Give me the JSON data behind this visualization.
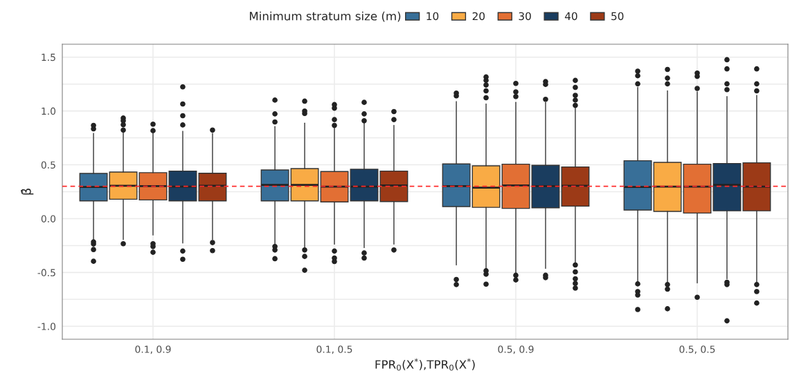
{
  "chart_data": {
    "type": "box",
    "xlabel": "FPR$_{0}$(X$^{*}$),TPR$_{0}$(X$^{*}$)",
    "ylabel": "β̂",
    "legend_title": "Minimum stratum size (m)",
    "legend": "top",
    "categories": [
      "0.1, 0.9",
      "0.1, 0.5",
      "0.5, 0.9",
      "0.5, 0.5"
    ],
    "ylim": [
      -1.12,
      1.62
    ],
    "yticks": [
      {
        "value": -1.0,
        "label": "-1.0"
      },
      {
        "value": -0.75,
        "label": null
      },
      {
        "value": -0.5,
        "label": "-0.5"
      },
      {
        "value": -0.25,
        "label": null
      },
      {
        "value": 0.0,
        "label": "0.0"
      },
      {
        "value": 0.25,
        "label": null
      },
      {
        "value": 0.5,
        "label": "0.5"
      },
      {
        "value": 0.75,
        "label": null
      },
      {
        "value": 1.0,
        "label": "1.0"
      },
      {
        "value": 1.25,
        "label": null
      },
      {
        "value": 1.5,
        "label": "1.5"
      }
    ],
    "grid": true,
    "ref_lines": [
      {
        "axis": "y",
        "value": 0.3,
        "color": "#ff2a2a",
        "line_style": "dashed"
      }
    ],
    "series": [
      {
        "name": "10",
        "color": "#386f98",
        "boxes": [
          {
            "low": -0.195,
            "q1": 0.165,
            "median": 0.294,
            "q3": 0.42,
            "high": 0.793,
            "outliers": [
              0.866,
              0.834,
              -0.216,
              -0.235,
              -0.287,
              -0.396
            ]
          },
          {
            "low": -0.237,
            "q1": 0.165,
            "median": 0.313,
            "q3": 0.452,
            "high": 0.855,
            "outliers": [
              1.101,
              0.973,
              0.898,
              -0.259,
              -0.291,
              -0.372
            ]
          },
          {
            "low": -0.43,
            "q1": 0.112,
            "median": 0.302,
            "q3": 0.508,
            "high": 1.087,
            "outliers": [
              1.166,
              1.14,
              -0.565,
              -0.612
            ]
          },
          {
            "low": -0.591,
            "q1": 0.08,
            "median": 0.294,
            "q3": 0.538,
            "high": 1.219,
            "outliers": [
              1.37,
              1.327,
              1.252,
              -0.606,
              -0.677,
              -0.709,
              -0.844
            ]
          }
        ]
      },
      {
        "name": "20",
        "color": "#f9ab45",
        "boxes": [
          {
            "low": -0.195,
            "q1": 0.18,
            "median": 0.305,
            "q3": 0.433,
            "high": 0.8,
            "outliers": [
              0.934,
              0.909,
              0.872,
              0.823,
              -0.233
            ]
          },
          {
            "low": -0.269,
            "q1": 0.165,
            "median": 0.313,
            "q3": 0.465,
            "high": 0.887,
            "outliers": [
              1.091,
              0.999,
              0.977,
              -0.291,
              -0.351,
              -0.479
            ]
          },
          {
            "low": -0.473,
            "q1": 0.105,
            "median": 0.287,
            "q3": 0.491,
            "high": 1.065,
            "outliers": [
              1.316,
              1.284,
              1.241,
              1.187,
              1.123,
              -0.484,
              -0.516,
              -0.608
            ]
          },
          {
            "low": -0.591,
            "q1": 0.067,
            "median": 0.298,
            "q3": 0.523,
            "high": 1.187,
            "outliers": [
              1.386,
              1.305,
              1.252,
              -0.612,
              -0.655,
              -0.837
            ]
          }
        ]
      },
      {
        "name": "30",
        "color": "#e26f34",
        "boxes": [
          {
            "low": -0.152,
            "q1": 0.174,
            "median": 0.302,
            "q3": 0.427,
            "high": 0.793,
            "outliers": [
              0.877,
              0.817,
              -0.233,
              -0.259,
              -0.312
            ]
          },
          {
            "low": -0.237,
            "q1": 0.155,
            "median": 0.298,
            "q3": 0.438,
            "high": 0.855,
            "outliers": [
              1.059,
              1.026,
              0.92,
              0.866,
              -0.301,
              -0.366,
              -0.398
            ]
          },
          {
            "low": -0.516,
            "q1": 0.095,
            "median": 0.309,
            "q3": 0.506,
            "high": 1.08,
            "outliers": [
              1.256,
              1.177,
              1.134,
              -0.526,
              -0.569
            ]
          },
          {
            "low": -0.597,
            "q1": 0.052,
            "median": 0.298,
            "q3": 0.506,
            "high": 1.177,
            "outliers": [
              1.352,
              1.322,
              1.209,
              -0.73
            ]
          }
        ]
      },
      {
        "name": "40",
        "color": "#1a3d5f",
        "boxes": [
          {
            "low": -0.227,
            "q1": 0.165,
            "median": 0.298,
            "q3": 0.442,
            "high": 0.812,
            "outliers": [
              1.224,
              1.065,
              0.956,
              0.87,
              -0.301,
              -0.377
            ]
          },
          {
            "low": -0.269,
            "q1": 0.165,
            "median": 0.298,
            "q3": 0.459,
            "high": 0.887,
            "outliers": [
              1.08,
              0.973,
              0.909,
              -0.319,
              -0.366
            ]
          },
          {
            "low": -0.462,
            "q1": 0.101,
            "median": 0.302,
            "q3": 0.495,
            "high": 1.08,
            "outliers": [
              1.273,
              1.247,
              1.108,
              -0.526,
              -0.548
            ]
          },
          {
            "low": -0.559,
            "q1": 0.073,
            "median": 0.313,
            "q3": 0.512,
            "high": 1.134,
            "outliers": [
              1.476,
              1.391,
              1.252,
              1.198,
              -0.591,
              -0.612,
              -0.949
            ]
          }
        ]
      },
      {
        "name": "50",
        "color": "#9c3a17",
        "boxes": [
          {
            "low": -0.195,
            "q1": 0.165,
            "median": 0.305,
            "q3": 0.422,
            "high": 0.793,
            "outliers": [
              0.823,
              -0.222,
              -0.297
            ]
          },
          {
            "low": -0.237,
            "q1": 0.159,
            "median": 0.309,
            "q3": 0.442,
            "high": 0.866,
            "outliers": [
              0.994,
              0.92,
              -0.291
            ]
          },
          {
            "low": -0.419,
            "q1": 0.116,
            "median": 0.305,
            "q3": 0.48,
            "high": 1.026,
            "outliers": [
              1.284,
              1.219,
              1.145,
              1.101,
              1.052,
              -0.43,
              -0.494,
              -0.559,
              -0.602,
              -0.645
            ]
          },
          {
            "low": -0.591,
            "q1": 0.073,
            "median": 0.298,
            "q3": 0.519,
            "high": 1.145,
            "outliers": [
              1.391,
              1.252,
              1.187,
              -0.612,
              -0.677,
              -0.784
            ]
          }
        ]
      }
    ]
  }
}
